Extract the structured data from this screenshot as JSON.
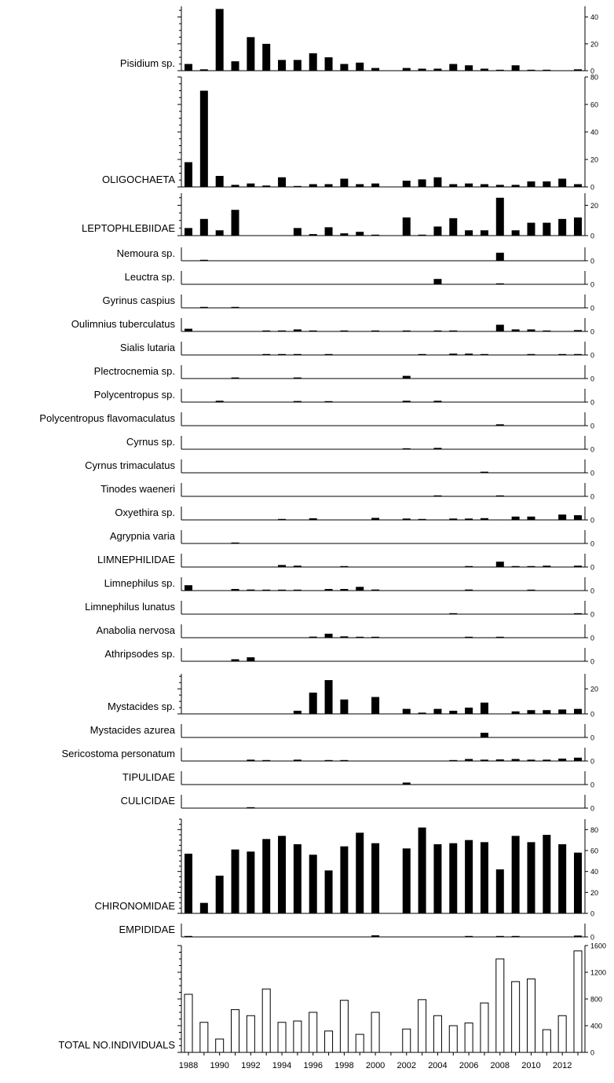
{
  "chart_data": {
    "type": "bar",
    "x": [
      1988,
      1989,
      1990,
      1991,
      1992,
      1993,
      1994,
      1995,
      1996,
      1997,
      1998,
      1999,
      2000,
      2001,
      2002,
      2003,
      2004,
      2005,
      2006,
      2007,
      2008,
      2009,
      2010,
      2011,
      2012,
      2013
    ],
    "x_tick_labels": [
      "1988",
      "1990",
      "1992",
      "1994",
      "1996",
      "1998",
      "2000",
      "2002",
      "2004",
      "2006",
      "2008",
      "2010",
      "2012"
    ],
    "series": [
      {
        "name": "Pisidium sp.",
        "ylim": [
          0,
          48
        ],
        "yticks": [
          0,
          20,
          40
        ],
        "values": [
          5,
          1,
          46,
          7,
          25,
          20,
          8,
          8,
          13,
          10,
          5,
          6,
          2,
          0,
          2,
          1.5,
          1.5,
          5,
          4,
          1.5,
          0.5,
          4,
          0.5,
          0.5,
          0,
          1
        ]
      },
      {
        "name": "OLIGOCHAETA",
        "ylim": [
          0,
          80
        ],
        "yticks": [
          0,
          20,
          40,
          60,
          80
        ],
        "values": [
          18,
          70,
          8,
          1.5,
          2.5,
          1,
          7,
          0.5,
          2,
          2,
          6,
          2,
          2.5,
          0,
          4.5,
          5.5,
          7,
          2,
          2.5,
          2,
          1.5,
          1.5,
          4,
          4,
          6,
          2
        ]
      },
      {
        "name": "LEPTOPHLEBIIDAE",
        "ylim": [
          0,
          28
        ],
        "yticks": [
          0,
          20
        ],
        "values": [
          5,
          11,
          3.5,
          17,
          0,
          0,
          0,
          5,
          1,
          5.5,
          1.5,
          2.5,
          0.5,
          0,
          12,
          0.5,
          6,
          11.5,
          3.5,
          3.5,
          25,
          3.5,
          8.5,
          8.5,
          11,
          12
        ]
      },
      {
        "name": "Nemoura sp.",
        "ylim": [
          0,
          10
        ],
        "yticks": [
          0
        ],
        "values": [
          0,
          0.2,
          0,
          0,
          0,
          0,
          0,
          0,
          0,
          0,
          0,
          0,
          0,
          0,
          0,
          0,
          0,
          0,
          0,
          0,
          6,
          0,
          0,
          0,
          0,
          0
        ]
      },
      {
        "name": "Leuctra sp.",
        "ylim": [
          0,
          10
        ],
        "yticks": [
          0
        ],
        "values": [
          0,
          0,
          0,
          0,
          0,
          0,
          0,
          0,
          0,
          0,
          0,
          0,
          0,
          0,
          0,
          0,
          4,
          0,
          0,
          0,
          0.3,
          0,
          0,
          0,
          0,
          0
        ]
      },
      {
        "name": "Gyrinus caspius",
        "ylim": [
          0,
          10
        ],
        "yticks": [
          0
        ],
        "values": [
          0,
          0.5,
          0,
          0.3,
          0,
          0,
          0,
          0,
          0,
          0,
          0,
          0,
          0,
          0,
          0,
          0,
          0,
          0,
          0,
          0,
          0,
          0,
          0,
          0,
          0,
          0
        ]
      },
      {
        "name": "Oulimnius tuberculatus",
        "ylim": [
          0,
          10
        ],
        "yticks": [
          0
        ],
        "values": [
          2,
          0,
          0,
          0,
          0,
          0.5,
          0.5,
          1.5,
          0.5,
          0,
          0.3,
          0,
          0.3,
          0,
          0.7,
          0,
          0.3,
          0.7,
          0,
          0,
          5,
          1.5,
          1.5,
          0.5,
          0,
          1
        ]
      },
      {
        "name": "Sialis lutaria",
        "ylim": [
          0,
          10
        ],
        "yticks": [
          0
        ],
        "values": [
          0,
          0,
          0,
          0,
          0,
          0.5,
          0.5,
          0.5,
          0,
          0.5,
          0,
          0,
          0,
          0,
          0,
          0.5,
          0,
          1,
          1,
          0.5,
          0,
          0,
          0.5,
          0,
          0.5,
          0.5
        ]
      },
      {
        "name": "Plectrocnemia sp.",
        "ylim": [
          0,
          10
        ],
        "yticks": [
          0
        ],
        "values": [
          0,
          0,
          0,
          0.8,
          0,
          0,
          0,
          0.8,
          0,
          0,
          0,
          0,
          0,
          0,
          2,
          0,
          0,
          0,
          0,
          0,
          0,
          0,
          0,
          0,
          0,
          0
        ]
      },
      {
        "name": "Polycentropus sp.",
        "ylim": [
          0,
          10
        ],
        "yticks": [
          0
        ],
        "values": [
          0,
          0,
          1,
          0,
          0,
          0,
          0,
          0.8,
          0,
          0.5,
          0,
          0,
          0,
          0,
          1,
          0,
          1,
          0,
          0,
          0,
          0,
          0,
          0,
          0,
          0,
          0
        ]
      },
      {
        "name": "Polycentropus flavomaculatus",
        "ylim": [
          0,
          10
        ],
        "yticks": [
          0
        ],
        "values": [
          0,
          0,
          0,
          0,
          0,
          0,
          0,
          0,
          0,
          0,
          0,
          0,
          0,
          0,
          0,
          0,
          0,
          0,
          0,
          0,
          1,
          0,
          0,
          0,
          0,
          0
        ]
      },
      {
        "name": "Cyrnus sp.",
        "ylim": [
          0,
          10
        ],
        "yticks": [
          0
        ],
        "values": [
          0,
          0,
          0,
          0,
          0,
          0,
          0,
          0,
          0,
          0,
          0,
          0,
          0,
          0,
          0.5,
          0,
          1,
          0,
          0,
          0,
          0,
          0,
          0,
          0,
          0,
          0
        ]
      },
      {
        "name": "Cyrnus trimaculatus",
        "ylim": [
          0,
          10
        ],
        "yticks": [
          0
        ],
        "values": [
          0,
          0,
          0,
          0,
          0,
          0,
          0,
          0,
          0,
          0,
          0,
          0,
          0,
          0,
          0,
          0,
          0,
          0,
          0,
          0.8,
          0,
          0,
          0,
          0,
          0,
          0
        ]
      },
      {
        "name": "Tinodes waeneri",
        "ylim": [
          0,
          10
        ],
        "yticks": [
          0
        ],
        "values": [
          0,
          0,
          0,
          0,
          0,
          0,
          0,
          0,
          0,
          0,
          0,
          0,
          0,
          0,
          0,
          0,
          0.3,
          0,
          0,
          0,
          0.3,
          0,
          0,
          0,
          0,
          0
        ]
      },
      {
        "name": "Oxyethira sp.",
        "ylim": [
          0,
          10
        ],
        "yticks": [
          0
        ],
        "values": [
          0,
          0,
          0,
          0,
          0,
          0,
          0.3,
          0,
          1.2,
          0,
          0,
          0,
          1.5,
          0,
          1,
          0.7,
          0,
          1,
          1,
          1.3,
          0,
          2.5,
          2.5,
          0,
          4,
          3.5
        ]
      },
      {
        "name": "Agrypnia varia",
        "ylim": [
          0,
          10
        ],
        "yticks": [
          0
        ],
        "values": [
          0,
          0,
          0,
          0.4,
          0,
          0,
          0,
          0,
          0,
          0,
          0,
          0,
          0,
          0,
          0,
          0,
          0,
          0,
          0,
          0,
          0,
          0,
          0,
          0,
          0,
          0
        ]
      },
      {
        "name": "LIMNEPHILIDAE",
        "ylim": [
          0,
          10
        ],
        "yticks": [
          0
        ],
        "values": [
          0,
          0,
          0,
          0,
          0,
          0,
          1.5,
          1,
          0,
          0,
          0.5,
          0,
          0,
          0,
          0,
          0,
          0,
          0,
          0.3,
          0,
          4,
          0.5,
          0.5,
          1,
          0,
          1
        ]
      },
      {
        "name": "Limnephilus sp.",
        "ylim": [
          0,
          10
        ],
        "yticks": [
          0
        ],
        "values": [
          4,
          0,
          0,
          1.2,
          0.8,
          0.5,
          0.5,
          0.7,
          0,
          1.2,
          1.2,
          2.8,
          0.8,
          0,
          0,
          0,
          0,
          0,
          0.8,
          0,
          0,
          0,
          0.4,
          0,
          0,
          0
        ]
      },
      {
        "name": "Limnephilus lunatus",
        "ylim": [
          0,
          10
        ],
        "yticks": [
          0
        ],
        "values": [
          0,
          0,
          0,
          0,
          0,
          0,
          0,
          0,
          0,
          0,
          0,
          0,
          0,
          0,
          0,
          0,
          0,
          0.3,
          0,
          0,
          0,
          0,
          0,
          0,
          0,
          0.3
        ]
      },
      {
        "name": "Anabolia nervosa",
        "ylim": [
          0,
          10
        ],
        "yticks": [
          0
        ],
        "values": [
          0,
          0,
          0,
          0,
          0,
          0,
          0,
          0,
          0.8,
          3,
          1,
          0.5,
          0.5,
          0,
          0,
          0,
          0,
          0,
          0.3,
          0,
          0.4,
          0,
          0,
          0,
          0,
          0
        ]
      },
      {
        "name": "Athripsodes sp.",
        "ylim": [
          0,
          10
        ],
        "yticks": [
          0
        ],
        "values": [
          0,
          0,
          0,
          1.5,
          3,
          0,
          0,
          0,
          0,
          0,
          0,
          0,
          0,
          0,
          0,
          0,
          0,
          0,
          0,
          0,
          0,
          0,
          0,
          0,
          0,
          0
        ]
      },
      {
        "name": "Mystacides sp.",
        "ylim": [
          0,
          32
        ],
        "yticks": [
          0,
          20
        ],
        "values": [
          0,
          0,
          0,
          0,
          0,
          0,
          0,
          2.5,
          17,
          27,
          11.5,
          0,
          13.5,
          0,
          4,
          1,
          4,
          2.5,
          5,
          9,
          0,
          2,
          3,
          3,
          3.5,
          4
        ]
      },
      {
        "name": "Mystacides azurea",
        "ylim": [
          0,
          10
        ],
        "yticks": [
          0
        ],
        "values": [
          0,
          0,
          0,
          0,
          0,
          0,
          0,
          0,
          0,
          0,
          0,
          0,
          0,
          0,
          0,
          0,
          0,
          0,
          0,
          3.5,
          0,
          0,
          0,
          0,
          0,
          0
        ]
      },
      {
        "name": "Sericostoma personatum",
        "ylim": [
          0,
          10
        ],
        "yticks": [
          0
        ],
        "values": [
          0,
          0,
          0,
          0,
          1,
          0.5,
          0,
          1,
          0,
          0.5,
          0.5,
          0,
          0,
          0,
          0,
          0,
          0,
          0.5,
          1.5,
          1,
          1.2,
          1.5,
          1,
          1,
          1.8,
          2.5
        ]
      },
      {
        "name": "TIPULIDAE",
        "ylim": [
          0,
          10
        ],
        "yticks": [
          0
        ],
        "values": [
          0,
          0,
          0,
          0,
          0,
          0,
          0,
          0,
          0,
          0,
          0,
          0,
          0,
          0,
          1.5,
          0,
          0,
          0,
          0,
          0,
          0,
          0,
          0,
          0,
          0,
          0
        ]
      },
      {
        "name": "CULICIDAE",
        "ylim": [
          0,
          10
        ],
        "yticks": [
          0
        ],
        "values": [
          0,
          0,
          0,
          0,
          0.6,
          0,
          0,
          0,
          0,
          0,
          0,
          0,
          0,
          0,
          0,
          0,
          0,
          0,
          0,
          0,
          0,
          0,
          0,
          0,
          0,
          0
        ]
      },
      {
        "name": "CHIRONOMIDAE",
        "ylim": [
          0,
          90
        ],
        "yticks": [
          0,
          20,
          40,
          60,
          80
        ],
        "values": [
          57,
          10,
          36,
          61,
          59,
          71,
          74,
          66,
          56,
          41,
          64,
          77,
          67,
          0,
          62,
          82,
          66,
          67,
          70,
          68,
          42,
          74,
          68,
          75,
          66,
          58
        ]
      },
      {
        "name": "EMPIDIDAE",
        "ylim": [
          0,
          10
        ],
        "yticks": [
          0
        ],
        "values": [
          0.3,
          0,
          0,
          0,
          0,
          0,
          0,
          0,
          0,
          0,
          0,
          0,
          1.2,
          0,
          0,
          0,
          0,
          0,
          0.3,
          0,
          0.4,
          0.4,
          0,
          0,
          0,
          1
        ]
      },
      {
        "name": "TOTAL NO.INDIVIDUALS",
        "ylim": [
          0,
          1600
        ],
        "yticks": [
          0,
          400,
          800,
          1200,
          1600
        ],
        "values": [
          870,
          450,
          200,
          640,
          550,
          950,
          450,
          470,
          600,
          320,
          780,
          270,
          600,
          0,
          350,
          790,
          550,
          400,
          440,
          740,
          1400,
          1060,
          1100,
          340,
          550,
          1520
        ],
        "hollow": true
      }
    ]
  }
}
